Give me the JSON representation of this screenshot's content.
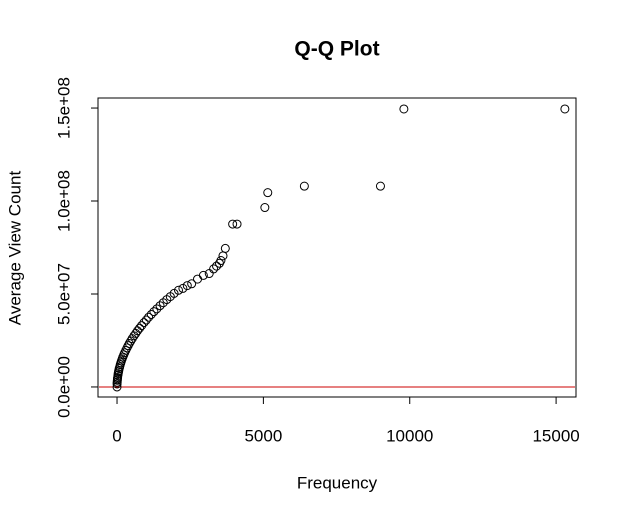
{
  "chart_data": {
    "type": "scatter",
    "title": "Q-Q Plot",
    "x_label": "Frequency",
    "y_label": "Average View Count",
    "x": [
      0,
      2,
      5,
      10,
      15,
      20,
      30,
      40,
      50,
      60,
      75,
      90,
      110,
      130,
      150,
      175,
      200,
      230,
      260,
      300,
      340,
      380,
      420,
      470,
      520,
      580,
      640,
      700,
      770,
      840,
      920,
      1000,
      1080,
      1170,
      1260,
      1360,
      1470,
      1580,
      1700,
      1820,
      1950,
      2100,
      2250,
      2400,
      2550,
      2750,
      2950,
      3150,
      3300,
      3400,
      3500,
      3550,
      3620,
      3700,
      3950,
      4100,
      5050,
      5150,
      6400,
      9000,
      9800,
      15300
    ],
    "values": [
      0,
      1600000,
      2500000,
      3600000,
      4400000,
      5100000,
      6200000,
      7200000,
      8100000,
      8800000,
      9900000,
      10800000,
      12000000,
      13000000,
      14000000,
      15100000,
      16100000,
      17300000,
      18400000,
      19700000,
      21000000,
      22200000,
      23400000,
      24700000,
      26000000,
      27500000,
      28800000,
      30200000,
      31600000,
      33000000,
      34600000,
      36000000,
      37500000,
      39000000,
      40500000,
      42000000,
      43700000,
      45300000,
      47000000,
      48600000,
      50300000,
      52000000,
      53000000,
      54500000,
      55500000,
      58000000,
      60000000,
      61000000,
      63500000,
      65000000,
      66500000,
      68000000,
      70500000,
      74500000,
      87600000,
      87600000,
      96500000,
      104500000,
      108000000,
      108000000,
      149500000,
      149500000
    ],
    "color": "#000000",
    "xlim": [
      -650,
      15680
    ],
    "xticks": [
      0,
      5000,
      10000,
      15000
    ],
    "ylim": [
      -5400000,
      155400000
    ],
    "yticks": [
      {
        "value": 0,
        "label": "0.0e+00"
      },
      {
        "value": 50000000,
        "label": "5.0e+07"
      },
      {
        "value": 100000000,
        "label": "1.0e+08"
      },
      {
        "value": 150000000,
        "label": "1.5e+08"
      }
    ],
    "reference_line": {
      "y": 0,
      "color": "#cc0000"
    }
  }
}
